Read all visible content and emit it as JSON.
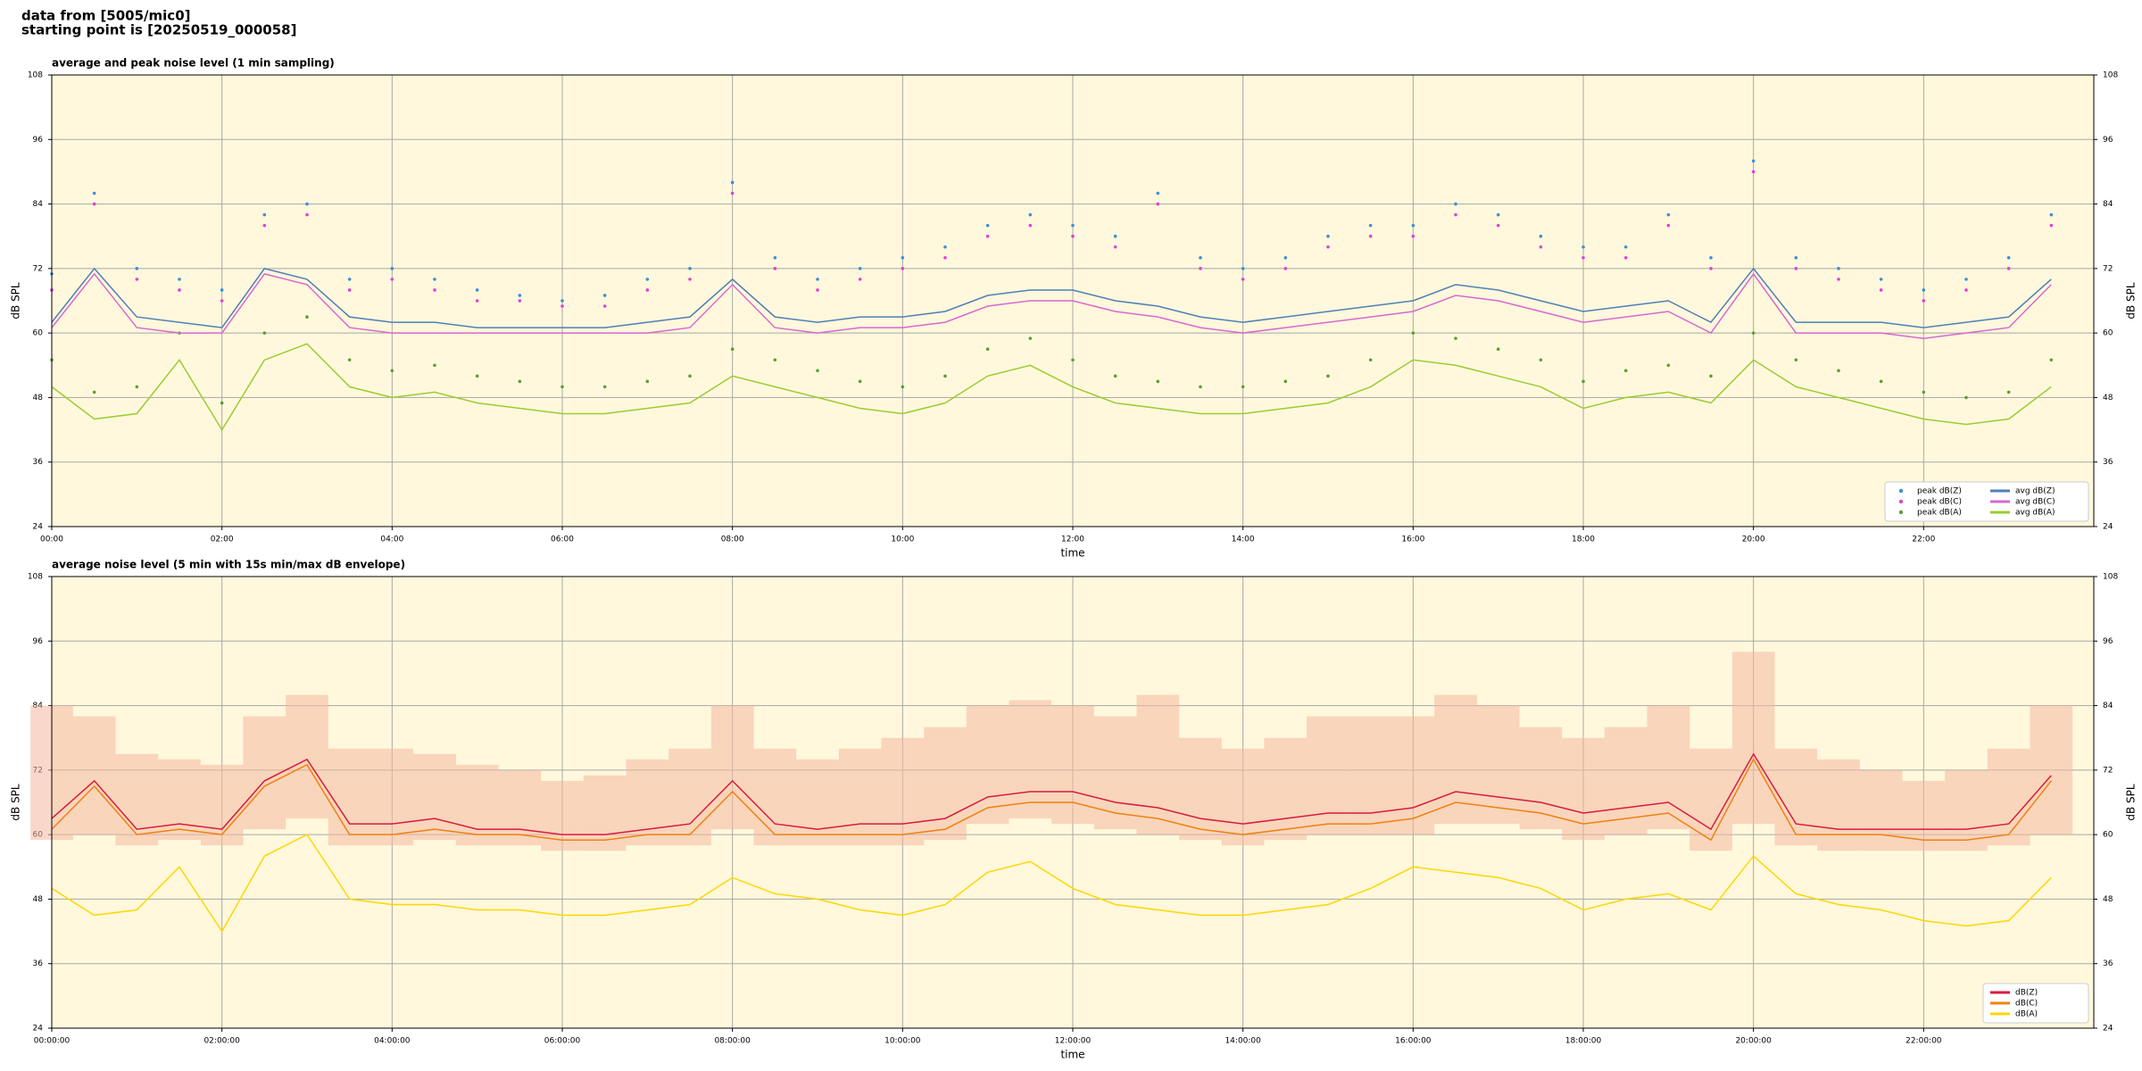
{
  "header": [
    "data from [5005/mic0]",
    "starting point is [20250519_000058]"
  ],
  "chart_data": [
    {
      "type": "line",
      "title": "average and peak noise level (1 min sampling)",
      "xlabel": "time",
      "ylabel": "dB SPL",
      "x": [
        0,
        0.5,
        1,
        1.5,
        2,
        2.5,
        3,
        3.5,
        4,
        4.5,
        5,
        5.5,
        6,
        6.5,
        7,
        7.5,
        8,
        8.5,
        9,
        9.5,
        10,
        10.5,
        11,
        11.5,
        12,
        12.5,
        13,
        13.5,
        14,
        14.5,
        15,
        15.5,
        16,
        16.5,
        17,
        17.5,
        18,
        18.5,
        19,
        19.5,
        20,
        20.5,
        21,
        21.5,
        22,
        22.5,
        23,
        23.5
      ],
      "xlim": [
        0,
        24
      ],
      "xticks": [
        {
          "value": 0,
          "label": "00:00"
        },
        {
          "value": 2,
          "label": "02:00"
        },
        {
          "value": 4,
          "label": "04:00"
        },
        {
          "value": 6,
          "label": "06:00"
        },
        {
          "value": 8,
          "label": "08:00"
        },
        {
          "value": 10,
          "label": "10:00"
        },
        {
          "value": 12,
          "label": "12:00"
        },
        {
          "value": 14,
          "label": "14:00"
        },
        {
          "value": 16,
          "label": "16:00"
        },
        {
          "value": 18,
          "label": "18:00"
        },
        {
          "value": 20,
          "label": "20:00"
        },
        {
          "value": 22,
          "label": "22:00"
        }
      ],
      "ylim": [
        24,
        108
      ],
      "yticks": [
        24,
        36,
        48,
        60,
        72,
        84,
        96,
        108
      ],
      "grid": true,
      "legend": "lower right",
      "legend_columns": 2,
      "series": [
        {
          "name": "peak dB(Z)",
          "mode": "markers",
          "color": "#3b8fd9",
          "values": [
            71,
            86,
            72,
            70,
            68,
            82,
            84,
            70,
            72,
            70,
            68,
            67,
            66,
            67,
            70,
            72,
            88,
            74,
            70,
            72,
            74,
            76,
            80,
            82,
            80,
            78,
            86,
            74,
            72,
            74,
            78,
            80,
            80,
            84,
            82,
            78,
            76,
            76,
            82,
            74,
            92,
            74,
            72,
            70,
            68,
            70,
            74,
            82
          ]
        },
        {
          "name": "peak dB(C)",
          "mode": "markers",
          "color": "#e040d8",
          "values": [
            68,
            84,
            70,
            68,
            66,
            80,
            82,
            68,
            70,
            68,
            66,
            66,
            65,
            65,
            68,
            70,
            86,
            72,
            68,
            70,
            72,
            74,
            78,
            80,
            78,
            76,
            84,
            72,
            70,
            72,
            76,
            78,
            78,
            82,
            80,
            76,
            74,
            74,
            80,
            72,
            90,
            72,
            70,
            68,
            66,
            68,
            72,
            80
          ]
        },
        {
          "name": "peak dB(A)",
          "mode": "markers",
          "color": "#5a9e3a",
          "values": [
            55,
            49,
            50,
            60,
            47,
            60,
            63,
            55,
            53,
            54,
            52,
            51,
            50,
            50,
            51,
            52,
            57,
            55,
            53,
            51,
            50,
            52,
            57,
            59,
            55,
            52,
            51,
            50,
            50,
            51,
            52,
            55,
            60,
            59,
            57,
            55,
            51,
            53,
            54,
            52,
            60,
            55,
            53,
            51,
            49,
            48,
            49,
            55
          ]
        },
        {
          "name": "avg dB(Z)",
          "mode": "lines",
          "color": "#4f7fb8",
          "values": [
            62,
            72,
            63,
            62,
            61,
            72,
            70,
            63,
            62,
            62,
            61,
            61,
            61,
            61,
            62,
            63,
            70,
            63,
            62,
            63,
            63,
            64,
            67,
            68,
            68,
            66,
            65,
            63,
            62,
            63,
            64,
            65,
            66,
            69,
            68,
            66,
            64,
            65,
            66,
            62,
            72,
            62,
            62,
            62,
            61,
            62,
            63,
            70
          ]
        },
        {
          "name": "avg dB(C)",
          "mode": "lines",
          "color": "#d868d0",
          "values": [
            61,
            71,
            61,
            60,
            60,
            71,
            69,
            61,
            60,
            60,
            60,
            60,
            60,
            60,
            60,
            61,
            69,
            61,
            60,
            61,
            61,
            62,
            65,
            66,
            66,
            64,
            63,
            61,
            60,
            61,
            62,
            63,
            64,
            67,
            66,
            64,
            62,
            63,
            64,
            60,
            71,
            60,
            60,
            60,
            59,
            60,
            61,
            69
          ]
        },
        {
          "name": "avg dB(A)",
          "mode": "lines",
          "color": "#9acd32",
          "values": [
            50,
            44,
            45,
            55,
            42,
            55,
            58,
            50,
            48,
            49,
            47,
            46,
            45,
            45,
            46,
            47,
            52,
            50,
            48,
            46,
            45,
            47,
            52,
            54,
            50,
            47,
            46,
            45,
            45,
            46,
            47,
            50,
            55,
            54,
            52,
            50,
            46,
            48,
            49,
            47,
            55,
            50,
            48,
            46,
            44,
            43,
            44,
            50
          ]
        }
      ]
    },
    {
      "type": "line",
      "title": "average noise level (5 min with 15s min/max dB envelope)",
      "xlabel": "time",
      "ylabel": "dB SPL",
      "x": [
        0,
        0.5,
        1,
        1.5,
        2,
        2.5,
        3,
        3.5,
        4,
        4.5,
        5,
        5.5,
        6,
        6.5,
        7,
        7.5,
        8,
        8.5,
        9,
        9.5,
        10,
        10.5,
        11,
        11.5,
        12,
        12.5,
        13,
        13.5,
        14,
        14.5,
        15,
        15.5,
        16,
        16.5,
        17,
        17.5,
        18,
        18.5,
        19,
        19.5,
        20,
        20.5,
        21,
        21.5,
        22,
        22.5,
        23,
        23.5
      ],
      "xlim": [
        0,
        24
      ],
      "xticks": [
        {
          "value": 0,
          "label": "00:00:00"
        },
        {
          "value": 2,
          "label": "02:00:00"
        },
        {
          "value": 4,
          "label": "04:00:00"
        },
        {
          "value": 6,
          "label": "06:00:00"
        },
        {
          "value": 8,
          "label": "08:00:00"
        },
        {
          "value": 10,
          "label": "10:00:00"
        },
        {
          "value": 12,
          "label": "12:00:00"
        },
        {
          "value": 14,
          "label": "14:00:00"
        },
        {
          "value": 16,
          "label": "16:00:00"
        },
        {
          "value": 18,
          "label": "18:00:00"
        },
        {
          "value": 20,
          "label": "20:00:00"
        },
        {
          "value": 22,
          "label": "22:00:00"
        }
      ],
      "ylim": [
        24,
        108
      ],
      "yticks": [
        24,
        36,
        48,
        60,
        72,
        84,
        96,
        108
      ],
      "grid": true,
      "legend": "lower right",
      "legend_columns": 1,
      "envelope": {
        "color": "#f4b8a0",
        "min": [
          59,
          60,
          58,
          59,
          58,
          61,
          63,
          58,
          58,
          59,
          58,
          58,
          57,
          57,
          58,
          58,
          61,
          58,
          58,
          58,
          58,
          59,
          62,
          63,
          62,
          61,
          60,
          59,
          58,
          59,
          60,
          60,
          60,
          62,
          62,
          61,
          59,
          60,
          61,
          57,
          62,
          58,
          57,
          57,
          57,
          57,
          58,
          60
        ],
        "max": [
          84,
          82,
          75,
          74,
          73,
          82,
          86,
          76,
          76,
          75,
          73,
          72,
          70,
          71,
          74,
          76,
          84,
          76,
          74,
          76,
          78,
          80,
          84,
          85,
          84,
          82,
          86,
          78,
          76,
          78,
          82,
          82,
          82,
          86,
          84,
          80,
          78,
          80,
          84,
          76,
          94,
          76,
          74,
          72,
          70,
          72,
          76,
          84
        ]
      },
      "series": [
        {
          "name": "dB(Z)",
          "mode": "lines",
          "color": "#d81b3c",
          "values": [
            63,
            70,
            61,
            62,
            61,
            70,
            74,
            62,
            62,
            63,
            61,
            61,
            60,
            60,
            61,
            62,
            70,
            62,
            61,
            62,
            62,
            63,
            67,
            68,
            68,
            66,
            65,
            63,
            62,
            63,
            64,
            64,
            65,
            68,
            67,
            66,
            64,
            65,
            66,
            61,
            75,
            62,
            61,
            61,
            61,
            61,
            62,
            71
          ]
        },
        {
          "name": "dB(C)",
          "mode": "lines",
          "color": "#f08010",
          "values": [
            61,
            69,
            60,
            61,
            60,
            69,
            73,
            60,
            60,
            61,
            60,
            60,
            59,
            59,
            60,
            60,
            68,
            60,
            60,
            60,
            60,
            61,
            65,
            66,
            66,
            64,
            63,
            61,
            60,
            61,
            62,
            62,
            63,
            66,
            65,
            64,
            62,
            63,
            64,
            59,
            74,
            60,
            60,
            60,
            59,
            59,
            60,
            70
          ]
        },
        {
          "name": "dB(A)",
          "mode": "lines",
          "color": "#ffd700",
          "values": [
            50,
            45,
            46,
            54,
            42,
            56,
            60,
            48,
            47,
            47,
            46,
            46,
            45,
            45,
            46,
            47,
            52,
            49,
            48,
            46,
            45,
            47,
            53,
            55,
            50,
            47,
            46,
            45,
            45,
            46,
            47,
            50,
            54,
            53,
            52,
            50,
            46,
            48,
            49,
            46,
            56,
            49,
            47,
            46,
            44,
            43,
            44,
            52
          ]
        }
      ]
    }
  ]
}
